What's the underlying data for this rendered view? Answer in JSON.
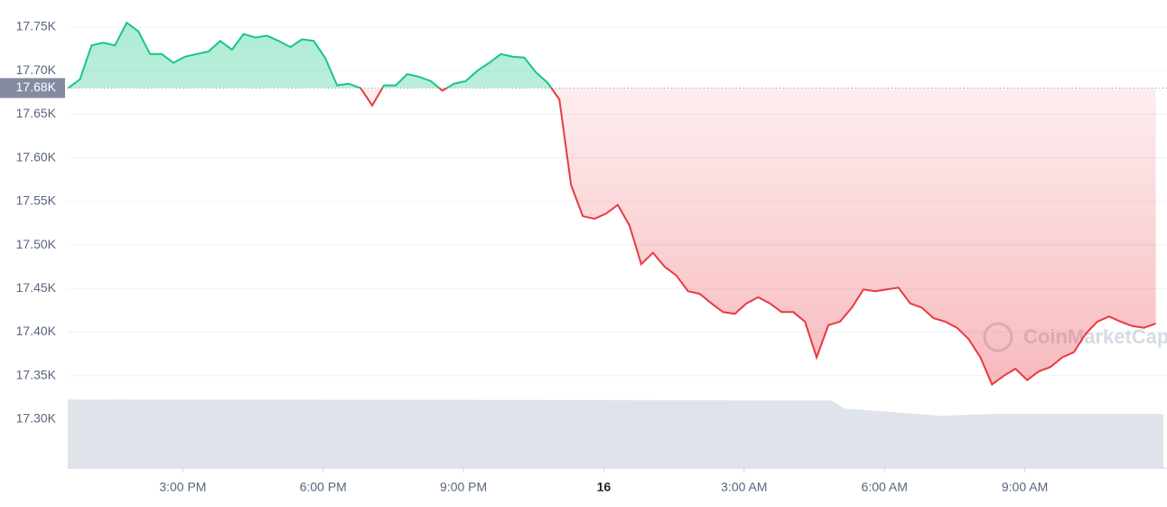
{
  "chart_data": {
    "type": "line",
    "x": [
      12.55,
      12.8,
      13.05,
      13.3,
      13.55,
      13.8,
      14.05,
      14.3,
      14.55,
      14.8,
      15.05,
      15.3,
      15.55,
      15.8,
      16.05,
      16.3,
      16.55,
      16.8,
      17.05,
      17.3,
      17.55,
      17.8,
      18.05,
      18.3,
      18.55,
      18.8,
      19.05,
      19.3,
      19.55,
      19.8,
      20.05,
      20.3,
      20.55,
      20.8,
      21.05,
      21.3,
      21.55,
      21.8,
      22.05,
      22.3,
      22.55,
      22.8,
      23.05,
      23.3,
      23.55,
      23.8,
      24.05,
      24.3,
      24.55,
      24.8,
      25.05,
      25.3,
      25.55,
      25.8,
      26.05,
      26.3,
      26.55,
      26.8,
      27.05,
      27.3,
      27.55,
      27.8,
      28.05,
      28.3,
      28.55,
      28.8,
      29.05,
      29.3,
      29.55,
      29.8,
      30.05,
      30.3,
      30.55,
      30.8,
      31.05,
      31.3,
      31.55,
      31.8,
      32.05,
      32.3,
      32.55,
      32.8,
      33.05,
      33.3,
      33.55,
      33.8,
      34.05,
      34.3,
      34.55,
      34.8,
      35.05,
      35.3,
      35.55,
      35.8
    ],
    "values": [
      17680,
      17690,
      17729,
      17732,
      17729,
      17755,
      17745,
      17719,
      17719,
      17709,
      17716,
      17719,
      17722,
      17734,
      17724,
      17742,
      17738,
      17740,
      17734,
      17727,
      17736,
      17734,
      17714,
      17683,
      17685,
      17680,
      17660,
      17683,
      17683,
      17696,
      17693,
      17688,
      17677,
      17685,
      17688,
      17700,
      17709,
      17719,
      17716,
      17715,
      17698,
      17686,
      17667,
      17569,
      17533,
      17530,
      17536,
      17546,
      17522,
      17478,
      17491,
      17475,
      17465,
      17447,
      17444,
      17433,
      17423,
      17421,
      17433,
      17440,
      17433,
      17423,
      17423,
      17412,
      17371,
      17408,
      17412,
      17428,
      17449,
      17447,
      17449,
      17451,
      17433,
      17428,
      17416,
      17412,
      17405,
      17392,
      17371,
      17340,
      17350,
      17358,
      17345,
      17355,
      17360,
      17371,
      17377,
      17398,
      17412,
      17418,
      17412,
      17407,
      17405,
      17410
    ],
    "baseline": {
      "value": 17680,
      "label": "17.68K"
    },
    "colors": {
      "up": "#16c784",
      "down": "#ea3943"
    },
    "xlim": [
      12.54,
      36.04
    ],
    "xticks": [
      {
        "value": 15,
        "label": "3:00 PM"
      },
      {
        "value": 18,
        "label": "6:00 PM"
      },
      {
        "value": 21,
        "label": "9:00 PM"
      },
      {
        "value": 24,
        "label": "16"
      },
      {
        "value": 27,
        "label": "3:00 AM"
      },
      {
        "value": 30,
        "label": "6:00 AM"
      },
      {
        "value": 33,
        "label": "9:00 AM"
      }
    ],
    "ylim": [
      17244,
      17781
    ],
    "yticks": [
      {
        "value": 17300,
        "label": "17.30K"
      },
      {
        "value": 17350,
        "label": "17.35K"
      },
      {
        "value": 17400,
        "label": "17.40K"
      },
      {
        "value": 17450,
        "label": "17.45K"
      },
      {
        "value": 17500,
        "label": "17.50K"
      },
      {
        "value": 17550,
        "label": "17.55K"
      },
      {
        "value": 17600,
        "label": "17.60K"
      },
      {
        "value": 17650,
        "label": "17.65K"
      },
      {
        "value": 17700,
        "label": "17.70K"
      },
      {
        "value": 17750,
        "label": "17.75K"
      }
    ],
    "grid": true,
    "watermark": "CoinMarketCap"
  }
}
